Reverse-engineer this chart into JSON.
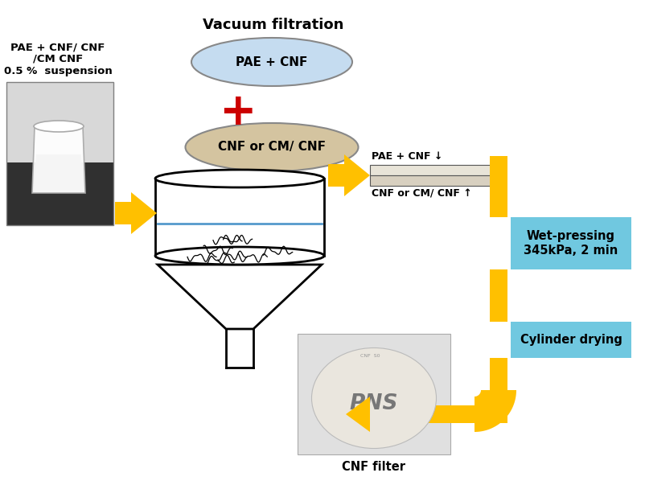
{
  "bg_color": "#ffffff",
  "arrow_color": "#FFC000",
  "box_color": "#70C8E0",
  "ellipse1_face": "#C5DCF0",
  "ellipse1_edge": "#888888",
  "ellipse2_face": "#D4C4A0",
  "ellipse2_edge": "#888888",
  "plus_color": "#CC0000",
  "text_color": "#000000",
  "title": "Vacuum filtration",
  "label_suspension": "PAE + CNF/ CNF\n/CM CNF\n0.5 %  suspension",
  "label_ellipse1": "PAE + CNF",
  "label_ellipse2": "CNF or CM/ CNF",
  "label_top_layer": "PAE + CNF ↓",
  "label_bot_layer": "CNF or CM/ CNF ↑",
  "label_wet": "Wet-pressing\n345kPa, 2 min",
  "label_dry": "Cylinder drying",
  "label_filter": "CNF filter",
  "fig_w": 8.03,
  "fig_h": 6.03,
  "dpi": 100
}
